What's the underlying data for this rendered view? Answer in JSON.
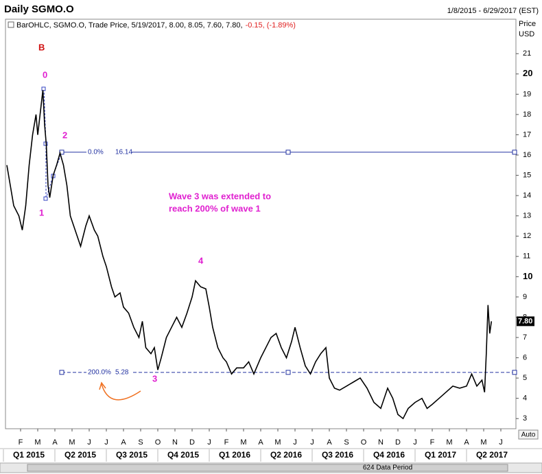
{
  "chart_data": {
    "type": "line",
    "title": "Daily SGMO.O",
    "date_range": "1/8/2015 - 6/29/2017 (EST)",
    "legend": "BarOHLC, SGMO.O, Trade Price, 5/19/2017, 8.00, 8.05, 7.60, 7.80,",
    "legend_change": "-0.15, (-1.89%)",
    "ylabel_lines": [
      "Price",
      "USD"
    ],
    "color": "#000000",
    "x": [
      0.2,
      0.4,
      0.6,
      0.9,
      1.1,
      1.3,
      1.5,
      1.7,
      1.9,
      2.0,
      2.3,
      2.4,
      2.5,
      2.6,
      2.7,
      2.9,
      3.1,
      3.3,
      3.5,
      3.7,
      3.9,
      4.1,
      4.3,
      4.5,
      4.8,
      5.0,
      5.3,
      5.5,
      5.8,
      6.0,
      6.3,
      6.5,
      6.8,
      7.0,
      7.3,
      7.6,
      7.9,
      8.1,
      8.3,
      8.6,
      8.8,
      9.0,
      9.2,
      9.5,
      9.8,
      10.1,
      10.4,
      10.7,
      11.0,
      11.2,
      11.5,
      11.8,
      12.0,
      12.2,
      12.5,
      12.8,
      13.0,
      13.3,
      13.6,
      14.0,
      14.3,
      14.6,
      15.0,
      15.3,
      15.6,
      15.9,
      16.2,
      16.5,
      16.8,
      17.0,
      17.3,
      17.6,
      17.9,
      18.2,
      18.5,
      18.8,
      19.0,
      19.3,
      19.6,
      20.0,
      20.4,
      20.8,
      21.2,
      21.6,
      22.0,
      22.4,
      22.7,
      23.0,
      23.3,
      23.6,
      24.0,
      24.4,
      24.7,
      25.0,
      25.4,
      25.8,
      26.2,
      26.6,
      27.0,
      27.3,
      27.6,
      27.9,
      28.05,
      28.15,
      28.25,
      28.35,
      28.45
    ],
    "values": [
      15.5,
      14.5,
      13.5,
      13.0,
      12.3,
      13.5,
      15.5,
      17.0,
      18.0,
      17.0,
      19.2,
      17.5,
      16.5,
      14.5,
      13.9,
      15.0,
      15.5,
      16.1,
      15.5,
      14.5,
      13.0,
      12.5,
      12.0,
      11.5,
      12.5,
      13.0,
      12.3,
      12.0,
      11.0,
      10.5,
      9.5,
      9.0,
      9.2,
      8.5,
      8.2,
      7.5,
      7.0,
      7.8,
      6.5,
      6.2,
      6.5,
      5.4,
      6.0,
      7.0,
      7.5,
      8.0,
      7.5,
      8.2,
      9.0,
      9.8,
      9.5,
      9.4,
      8.5,
      7.5,
      6.5,
      6.0,
      5.8,
      5.2,
      5.5,
      5.5,
      5.8,
      5.2,
      6.0,
      6.5,
      7.0,
      7.2,
      6.5,
      6.0,
      6.8,
      7.5,
      6.5,
      5.6,
      5.2,
      5.8,
      6.2,
      6.5,
      5.0,
      4.5,
      4.4,
      4.6,
      4.8,
      5.0,
      4.5,
      3.8,
      3.5,
      4.5,
      4.0,
      3.2,
      3.0,
      3.5,
      3.8,
      4.0,
      3.5,
      3.7,
      4.0,
      4.3,
      4.6,
      4.5,
      4.6,
      5.2,
      4.6,
      4.9,
      4.3,
      6.2,
      8.6,
      7.2,
      7.8
    ],
    "last_price": {
      "value": 7.8,
      "label": "7.80"
    },
    "xlim": [
      0.12,
      29.88
    ],
    "ylim": [
      2.5,
      22.7
    ],
    "yticks": [
      3,
      4,
      5,
      6,
      7,
      8,
      9,
      10,
      11,
      12,
      13,
      14,
      15,
      16,
      17,
      18,
      19,
      20,
      21
    ],
    "major_every": 10,
    "xticks": [
      {
        "value": 1,
        "label": "F"
      },
      {
        "value": 2,
        "label": "M"
      },
      {
        "value": 3,
        "label": "A"
      },
      {
        "value": 4,
        "label": "M"
      },
      {
        "value": 5,
        "label": "J"
      },
      {
        "value": 6,
        "label": "J"
      },
      {
        "value": 7,
        "label": "A"
      },
      {
        "value": 8,
        "label": "S"
      },
      {
        "value": 9,
        "label": "O"
      },
      {
        "value": 10,
        "label": "N"
      },
      {
        "value": 11,
        "label": "D"
      },
      {
        "value": 12,
        "label": "J"
      },
      {
        "value": 13,
        "label": "F"
      },
      {
        "value": 14,
        "label": "M"
      },
      {
        "value": 15,
        "label": "A"
      },
      {
        "value": 16,
        "label": "M"
      },
      {
        "value": 17,
        "label": "J"
      },
      {
        "value": 18,
        "label": "J"
      },
      {
        "value": 19,
        "label": "A"
      },
      {
        "value": 20,
        "label": "S"
      },
      {
        "value": 21,
        "label": "O"
      },
      {
        "value": 22,
        "label": "N"
      },
      {
        "value": 23,
        "label": "D"
      },
      {
        "value": 24,
        "label": "J"
      },
      {
        "value": 25,
        "label": "F"
      },
      {
        "value": 26,
        "label": "M"
      },
      {
        "value": 27,
        "label": "A"
      },
      {
        "value": 28,
        "label": "M"
      },
      {
        "value": 29,
        "label": "J"
      }
    ],
    "quarters": [
      {
        "value": 0,
        "label": "Q1 2015"
      },
      {
        "value": 3,
        "label": "Q2 2015"
      },
      {
        "value": 6,
        "label": "Q3 2015"
      },
      {
        "value": 9,
        "label": "Q4 2015"
      },
      {
        "value": 12,
        "label": "Q1 2016"
      },
      {
        "value": 15,
        "label": "Q2 2016"
      },
      {
        "value": 18,
        "label": "Q3 2016"
      },
      {
        "value": 21,
        "label": "Q4 2016"
      },
      {
        "value": 24,
        "label": "Q1 2017"
      },
      {
        "value": 27,
        "label": "Q2 2017"
      }
    ],
    "fib_levels": [
      {
        "label": "0.0%",
        "value": 16.14,
        "style": "solid"
      },
      {
        "label": "200.0%",
        "value": 5.28,
        "style": "dashed"
      }
    ],
    "annotations": {
      "b": "B",
      "w0": "0",
      "w1": "1",
      "w2": "2",
      "w3": "3",
      "w4": "4",
      "note1": "Wave 3 was extended to",
      "note2": "reach 200% of wave 1"
    },
    "data_period": "624 Data Period",
    "auto": "Auto"
  }
}
